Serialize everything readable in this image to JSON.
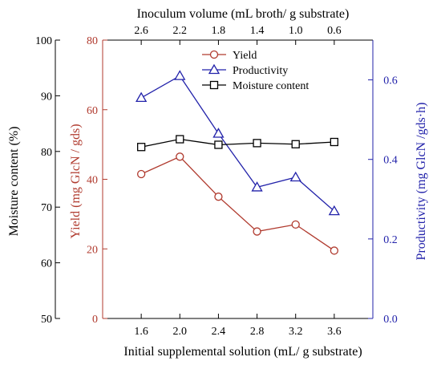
{
  "chart_data": {
    "type": "line",
    "title": "",
    "x": [
      1.6,
      2.0,
      2.4,
      2.8,
      3.2,
      3.6
    ],
    "xlabel": "Initial supplemental solution (mL/ g substrate)",
    "xticks": [
      "1.6",
      "2.0",
      "2.4",
      "2.8",
      "3.2",
      "3.6"
    ],
    "top_axis": {
      "label": "Inoculum volume (mL broth/ g substrate)",
      "ticks": [
        "2.6",
        "2.2",
        "1.8",
        "1.4",
        "1.0",
        "0.6"
      ]
    },
    "axes": {
      "moisture": {
        "label": "Moisture content (%)",
        "color": "#000000",
        "range": [
          50,
          100
        ],
        "ticks": [
          "50",
          "60",
          "70",
          "80",
          "90",
          "100"
        ]
      },
      "yield": {
        "label": "Yield (mg GlcN / gds)",
        "color": "#b03a2e",
        "range": [
          0,
          80
        ],
        "ticks": [
          "0",
          "20",
          "40",
          "60",
          "80"
        ]
      },
      "productivity": {
        "label": "Productivity (mg GlcN /gds·h)",
        "color": "#2222aa",
        "range": [
          0,
          0.7
        ],
        "ticks": [
          "0.0",
          "0.2",
          "0.4",
          "0.6"
        ]
      }
    },
    "series": [
      {
        "name": "Yield",
        "axis": "yield",
        "marker": "circle",
        "color": "#b03a2e",
        "values": [
          41.5,
          46.5,
          35,
          25,
          27,
          19.5
        ]
      },
      {
        "name": "Productivity",
        "axis": "productivity",
        "marker": "triangle",
        "color": "#2222aa",
        "values": [
          0.555,
          0.61,
          0.465,
          0.33,
          0.355,
          0.27
        ]
      },
      {
        "name": "Moisture content",
        "axis": "moisture",
        "marker": "square",
        "color": "#000000",
        "values": [
          80.8,
          82.2,
          81.2,
          81.5,
          81.3,
          81.7
        ]
      }
    ],
    "legend": "top-center",
    "grid": false
  }
}
